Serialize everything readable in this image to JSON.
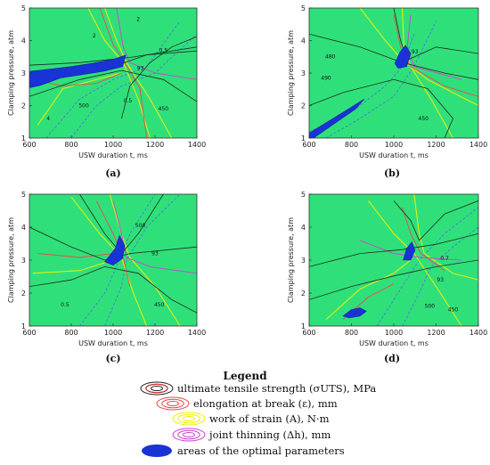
{
  "chart_data": [
    {
      "panel": "(a)",
      "type": "contour",
      "xlabel": "USW duration t, ms",
      "ylabel": "Clamping pressure, atm",
      "xlim": [
        600,
        1400
      ],
      "ylim": [
        1,
        5
      ],
      "xticks": [
        "600",
        "800",
        "1000",
        "1200",
        "1400"
      ],
      "yticks": [
        "1",
        "2",
        "3",
        "4",
        "5"
      ],
      "optimal_region": [
        [
          600,
          3.05
        ],
        [
          700,
          3.12
        ],
        [
          800,
          3.2
        ],
        [
          900,
          3.3
        ],
        [
          1000,
          3.42
        ],
        [
          1060,
          3.55
        ],
        [
          1045,
          3.2
        ],
        [
          950,
          3.05
        ],
        [
          850,
          2.95
        ],
        [
          750,
          2.85
        ],
        [
          650,
          2.62
        ],
        [
          600,
          2.55
        ]
      ],
      "contour_labels": [
        {
          "text": "2",
          "x": 910,
          "y": 4.1
        },
        {
          "text": "2",
          "x": 1120,
          "y": 4.6
        },
        {
          "text": "93",
          "x": 1130,
          "y": 3.1
        },
        {
          "text": "0.5",
          "x": 1240,
          "y": 3.65
        },
        {
          "text": "500",
          "x": 860,
          "y": 1.95
        },
        {
          "text": "0.5",
          "x": 1070,
          "y": 2.1
        },
        {
          "text": "450",
          "x": 1240,
          "y": 1.85
        },
        {
          "text": "4",
          "x": 690,
          "y": 1.55
        }
      ]
    },
    {
      "panel": "(b)",
      "type": "contour",
      "xlabel": "USW duration t, ms",
      "ylabel": "Clamping pressure, atm",
      "xlim": [
        600,
        1400
      ],
      "ylim": [
        1,
        5
      ],
      "xticks": [
        "600",
        "800",
        "1000",
        "1200",
        "1400"
      ],
      "yticks": [
        "1",
        "2",
        "3",
        "4",
        "5"
      ],
      "optimal_region": [
        [
          1005,
          3.3
        ],
        [
          1030,
          3.65
        ],
        [
          1055,
          3.85
        ],
        [
          1080,
          3.6
        ],
        [
          1060,
          3.2
        ],
        [
          1020,
          3.15
        ]
      ],
      "optimal_region_2": [
        [
          600,
          1.15
        ],
        [
          700,
          1.55
        ],
        [
          800,
          1.95
        ],
        [
          860,
          2.2
        ],
        [
          820,
          1.9
        ],
        [
          720,
          1.45
        ],
        [
          620,
          1.0
        ],
        [
          600,
          1.0
        ]
      ],
      "contour_labels": [
        {
          "text": "480",
          "x": 700,
          "y": 3.45
        },
        {
          "text": "93",
          "x": 1100,
          "y": 3.6
        },
        {
          "text": "450",
          "x": 1140,
          "y": 1.55
        },
        {
          "text": "490",
          "x": 680,
          "y": 2.8
        }
      ]
    },
    {
      "panel": "(c)",
      "type": "contour",
      "xlabel": "USW duration t, ms",
      "ylabel": "Clamping pressure, atm",
      "xlim": [
        600,
        1400
      ],
      "ylim": [
        1,
        5
      ],
      "xticks": [
        "600",
        "800",
        "1000",
        "1200",
        "1400"
      ],
      "yticks": [
        "1",
        "2",
        "3",
        "4",
        "5"
      ],
      "optimal_region": [
        [
          960,
          2.95
        ],
        [
          1010,
          3.35
        ],
        [
          1030,
          3.75
        ],
        [
          1055,
          3.45
        ],
        [
          1045,
          3.05
        ],
        [
          1000,
          2.85
        ]
      ],
      "contour_labels": [
        {
          "text": "93",
          "x": 1200,
          "y": 3.15
        },
        {
          "text": "450",
          "x": 1220,
          "y": 1.6
        },
        {
          "text": "0.5",
          "x": 770,
          "y": 1.6
        },
        {
          "text": "500",
          "x": 1130,
          "y": 4.0
        }
      ]
    },
    {
      "panel": "(d)",
      "type": "contour",
      "xlabel": "USW duration t, ms",
      "ylabel": "Clamping pressure, atm",
      "xlim": [
        600,
        1400
      ],
      "ylim": [
        1,
        5
      ],
      "xticks": [
        "600",
        "800",
        "1000",
        "1200",
        "1400"
      ],
      "yticks": [
        "1",
        "2",
        "3",
        "4",
        "5"
      ],
      "optimal_region": [
        [
          1045,
          3.0
        ],
        [
          1060,
          3.35
        ],
        [
          1085,
          3.55
        ],
        [
          1100,
          3.3
        ],
        [
          1080,
          3.0
        ]
      ],
      "optimal_region_2": [
        [
          760,
          1.3
        ],
        [
          800,
          1.5
        ],
        [
          840,
          1.55
        ],
        [
          870,
          1.45
        ],
        [
          840,
          1.3
        ],
        [
          790,
          1.25
        ]
      ],
      "contour_labels": [
        {
          "text": "0.7",
          "x": 1240,
          "y": 3.0
        },
        {
          "text": "93",
          "x": 1220,
          "y": 2.35
        },
        {
          "text": "500",
          "x": 1170,
          "y": 1.55
        },
        {
          "text": "450",
          "x": 1280,
          "y": 1.45
        }
      ]
    }
  ],
  "panels": [
    "(a)",
    "(b)",
    "(c)",
    "(d)"
  ],
  "legend": {
    "title": "Legend",
    "items": [
      {
        "label": "ultimate tensile strength (σUTS), MPa",
        "color": "#e8e8e8"
      },
      {
        "label": "elongation at break (ε), mm",
        "color": "#e84a4a"
      },
      {
        "label": "work of strain (A), N·m",
        "color": "#f0f000"
      },
      {
        "label": "joint thinning (Δh), mm",
        "color": "#d040d0"
      },
      {
        "label": "areas of the optimal parameters",
        "color": "#1a33d6"
      }
    ]
  },
  "colors": {
    "field": "#2fe07a",
    "optimal": "#1a33d6",
    "uts": "#1e2a1e",
    "elongation": "#e84a4a",
    "work": "#f0f000",
    "thinning": "#d040d0",
    "blue_lines": "#4a6fe0"
  }
}
